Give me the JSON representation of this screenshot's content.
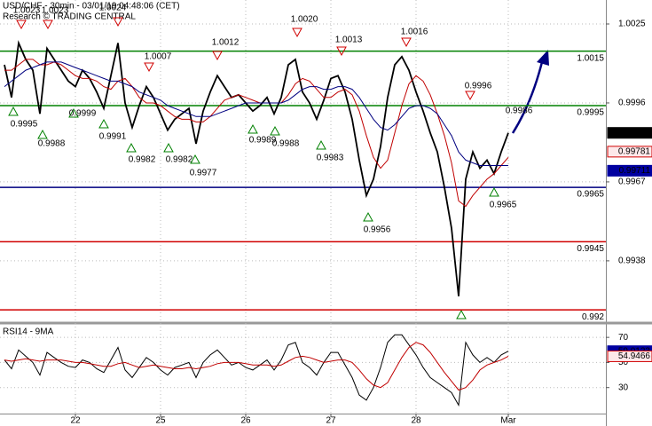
{
  "chart_data": [
    {
      "type": "line",
      "title": "USD/CHF - 30min - 03/01/19 04:48:06 (CET)",
      "subtitle": "Research © TRADING CENTRAL",
      "categories": [
        null,
        null,
        null,
        null,
        null,
        null,
        null,
        null,
        null,
        null,
        "22",
        null,
        null,
        null,
        null,
        null,
        null,
        null,
        null,
        null,
        null,
        null,
        "25",
        null,
        null,
        null,
        null,
        null,
        null,
        null,
        null,
        null,
        null,
        null,
        "26",
        null,
        null,
        null,
        null,
        null,
        null,
        null,
        null,
        null,
        null,
        null,
        "27",
        null,
        null,
        null,
        null,
        null,
        null,
        null,
        null,
        null,
        null,
        null,
        "28",
        null,
        null,
        null,
        null,
        null,
        null,
        null,
        null,
        null,
        null,
        null,
        null,
        "Mar"
      ],
      "series": [
        {
          "color": "#000000",
          "values": [
            1.001,
            0.9998,
            1.0018,
            1.0012,
            1.0008,
            0.9992,
            1.0016,
            1.0012,
            1.0008,
            1.0004,
            1.0002,
            1.0008,
            1.0005,
            1.0,
            0.9994,
            1.0006,
            1.0018,
            0.9996,
            0.9987,
            0.9995,
            1.0002,
            0.9998,
            0.9992,
            0.9986,
            0.999,
            0.9992,
            0.9994,
            0.9981,
            0.9993,
            1.0,
            1.0006,
            1.0002,
            0.9998,
            0.9999,
            0.9996,
            0.9993,
            0.9995,
            0.9998,
            0.9992,
            0.9998,
            1.001,
            1.0012,
            1.0,
            0.9996,
            0.999,
            0.9997,
            1.0005,
            1.0006,
            1.0,
            0.999,
            0.9975,
            0.9962,
            0.9968,
            0.998,
            0.9998,
            1.001,
            1.0013,
            1.0008,
            1.0,
            0.9993,
            0.9985,
            0.9978,
            0.9965,
            0.995,
            0.9925,
            0.9968,
            0.9978,
            0.9972,
            0.9975,
            0.997,
            0.9978,
            0.9985
          ]
        },
        {
          "color": "#c00000",
          "values": [
            1.0008,
            1.0008,
            1.001,
            1.0012,
            1.0012,
            1.001,
            1.001,
            1.0011,
            1.001,
            1.0008,
            1.0006,
            1.0005,
            1.0005,
            1.0004,
            1.0002,
            1.0001,
            1.0004,
            1.0005,
            1.0002,
            0.9998,
            0.9996,
            0.9996,
            0.9995,
            0.9993,
            0.9991,
            0.999,
            0.999,
            0.9989,
            0.9989,
            0.9991,
            0.9994,
            0.9997,
            0.9998,
            0.9999,
            0.9998,
            0.9997,
            0.9996,
            0.9996,
            0.9996,
            0.9996,
            0.9999,
            1.0003,
            1.0005,
            1.0004,
            1.0001,
            0.9998,
            0.9998,
            1.0,
            1.0001,
            0.9999,
            0.9993,
            0.9984,
            0.9976,
            0.9972,
            0.9975,
            0.9985,
            0.9995,
            1.0003,
            1.0006,
            1.0004,
            0.9999,
            0.9992,
            0.9984,
            0.9974,
            0.996,
            0.9958,
            0.9962,
            0.9965,
            0.9968,
            0.997,
            0.9973,
            0.9976
          ]
        },
        {
          "color": "#000080",
          "values": [
            1.0002,
            1.0004,
            1.0006,
            1.0008,
            1.0009,
            1.001,
            1.0011,
            1.0011,
            1.0011,
            1.001,
            1.0009,
            1.0008,
            1.0007,
            1.0006,
            1.0005,
            1.0004,
            1.0004,
            1.0003,
            1.0002,
            1.0,
            0.9999,
            0.9998,
            0.9997,
            0.9995,
            0.9994,
            0.9993,
            0.9992,
            0.9991,
            0.9991,
            0.9991,
            0.9992,
            0.9993,
            0.9994,
            0.9995,
            0.9996,
            0.9996,
            0.9996,
            0.9996,
            0.9996,
            0.9996,
            0.9997,
            0.9999,
            1.0001,
            1.0002,
            1.0002,
            1.0001,
            1.0001,
            1.0002,
            1.0002,
            1.0001,
            0.9998,
            0.9994,
            0.999,
            0.9987,
            0.9986,
            0.9988,
            0.9991,
            0.9994,
            0.9995,
            0.9995,
            0.9994,
            0.9992,
            0.9988,
            0.9984,
            0.9978,
            0.9975,
            0.9974,
            0.9973,
            0.9973,
            0.9973,
            0.9973,
            0.9973
          ]
        }
      ],
      "ylim": [
        0.99158,
        1.00338
      ],
      "yticks": [
        1.0025,
        0.9996,
        0.9967,
        0.9938
      ],
      "grid": true,
      "levels": [
        {
          "value": 1.0015,
          "color": "#008000"
        },
        {
          "value": 0.9995,
          "color": "#008000"
        },
        {
          "value": 0.9965,
          "color": "#000080"
        },
        {
          "value": 0.9945,
          "color": "#d00000"
        },
        {
          "value": 0.992,
          "color": "#d00000"
        }
      ],
      "price_tags": [
        {
          "value": 0.9985,
          "color": "#000000",
          "filled": true
        },
        {
          "value": 0.99781,
          "color": "#d00000",
          "filled": false
        },
        {
          "value": 0.99711,
          "color": "#0000a0",
          "filled": true
        }
      ],
      "highs": [
        "1.0023",
        "1.0023",
        "1.0024",
        "1.0007",
        "1.0012",
        "1.0020",
        "1.0013",
        "1.0016",
        "0.9996"
      ],
      "lows": [
        "0.9995",
        "0.9988",
        "0.9999",
        "0.9991",
        "0.9982",
        "0.9982",
        "0.9977",
        "0.9989",
        "0.9988",
        "0.9983",
        "0.9956",
        "0.9965"
      ],
      "last_label": "0.9986"
    },
    {
      "type": "line",
      "title": "RSI14 - 9MA",
      "series": [
        {
          "color": "#000000",
          "values": [
            52,
            45,
            60,
            55,
            50,
            40,
            58,
            54,
            50,
            47,
            46,
            52,
            50,
            45,
            42,
            52,
            62,
            44,
            38,
            46,
            54,
            50,
            44,
            40,
            46,
            48,
            50,
            38,
            50,
            56,
            60,
            54,
            48,
            50,
            46,
            44,
            48,
            52,
            44,
            52,
            64,
            66,
            50,
            46,
            40,
            50,
            58,
            58,
            48,
            38,
            24,
            20,
            30,
            46,
            66,
            72,
            72,
            64,
            56,
            46,
            38,
            34,
            30,
            26,
            16,
            66,
            56,
            50,
            54,
            50,
            56,
            59
          ]
        },
        {
          "color": "#c00000",
          "values": [
            52,
            51,
            52,
            53,
            52,
            51,
            52,
            52,
            52,
            51,
            50,
            50,
            49,
            48,
            47,
            47,
            49,
            50,
            48,
            46,
            47,
            48,
            47,
            46,
            45,
            45,
            46,
            45,
            46,
            47,
            49,
            50,
            50,
            50,
            49,
            48,
            48,
            48,
            47,
            48,
            51,
            54,
            55,
            54,
            52,
            50,
            51,
            52,
            52,
            50,
            44,
            37,
            32,
            30,
            34,
            44,
            54,
            62,
            66,
            64,
            58,
            50,
            42,
            35,
            28,
            30,
            36,
            44,
            48,
            50,
            52,
            55
          ]
        }
      ],
      "ylim": [
        10,
        80
      ],
      "yticks": [
        70,
        50,
        30
      ],
      "price_tags": [
        {
          "value": 59.0123,
          "color": "#0000a0",
          "filled": true
        },
        {
          "value": 54.9466,
          "color": "#d00000",
          "filled": false
        }
      ]
    }
  ]
}
